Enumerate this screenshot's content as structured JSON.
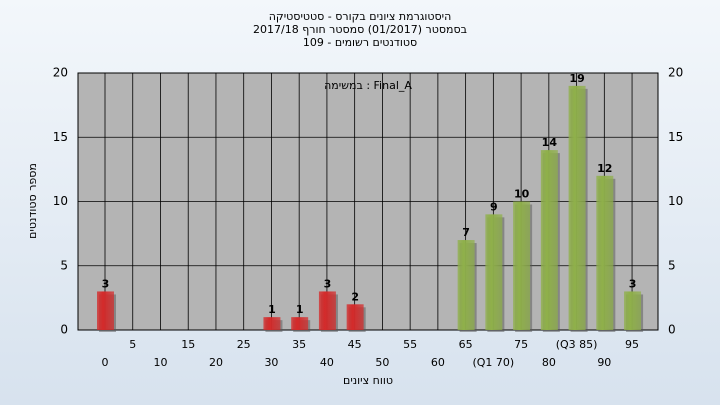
{
  "chart_data": {
    "type": "bar",
    "title": [
      "היסטוגרמת ציונים בקורס - סטטיסטיקה",
      "בסמסטר (01/2017) סמסטר חורף 2017/18",
      "סטודנטים רשומים - 109"
    ],
    "annotation": "במשימה : Final_A",
    "x_label": "טווח ציונים",
    "y_label": "מספר סטודנטים",
    "categories": [
      "0",
      "5",
      "10",
      "15",
      "20",
      "25",
      "30",
      "35",
      "40",
      "45",
      "50",
      "55",
      "60",
      "65",
      "(Q1 70)",
      "75",
      "80",
      "(Q3 85)",
      "90",
      "95"
    ],
    "values": [
      3,
      0,
      0,
      0,
      0,
      0,
      1,
      1,
      3,
      2,
      0,
      0,
      0,
      7,
      9,
      10,
      14,
      19,
      12,
      3
    ],
    "colors": [
      "#d42a2a",
      "#d42a2a",
      "#d42a2a",
      "#d42a2a",
      "#d42a2a",
      "#d42a2a",
      "#d42a2a",
      "#d42a2a",
      "#d42a2a",
      "#d42a2a",
      "#d42a2a",
      "#d42a2a",
      "#8fb04a",
      "#8fb04a",
      "#8fb04a",
      "#8fb04a",
      "#8fb04a",
      "#8fb04a",
      "#8fb04a",
      "#8fb04a"
    ],
    "ylim": [
      0,
      20
    ],
    "yticks": [
      0,
      5,
      10,
      15,
      20
    ],
    "grid": true
  }
}
